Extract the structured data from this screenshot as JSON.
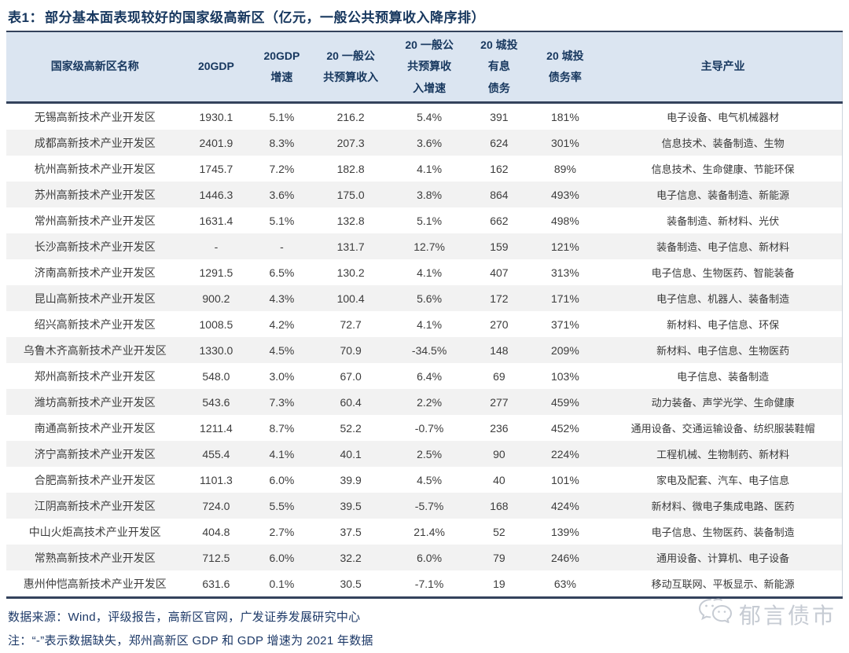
{
  "title": {
    "prefix": "表1：",
    "text": "部分基本面表现较好的国家级高新区（亿元，一般公共预算收入降序排）"
  },
  "colors": {
    "accent_navy": "#17375e",
    "rule": "#33425c",
    "header_bg": "#dbe5f1",
    "row_stripe": "#f2f2f2",
    "body_text": "#3d3d3d",
    "footer_text": "#1e3a68",
    "watermark": "#c6cbd3"
  },
  "table": {
    "columns": [
      {
        "key": "zone-name",
        "label": "国家级高新区名称"
      },
      {
        "key": "gdp-2020",
        "label": "20GDP"
      },
      {
        "key": "gdp-growth-2020",
        "label": "20GDP\n增速"
      },
      {
        "key": "budget-revenue-2020",
        "label": "20 一般公\n共预算收入"
      },
      {
        "key": "budget-revenue-growth-2020",
        "label": "20 一般公\n共预算收\n入增速"
      },
      {
        "key": "lgfv-debt-2020",
        "label": "20 城投\n有息\n债务"
      },
      {
        "key": "lgfv-debt-ratio-2020",
        "label": "20 城投\n债务率"
      },
      {
        "key": "leading-industries",
        "label": "主导产业"
      }
    ],
    "rows": [
      [
        "无锡高新技术产业开发区",
        "1930.1",
        "5.1%",
        "216.2",
        "5.4%",
        "391",
        "181%",
        "电子设备、电气机械器材"
      ],
      [
        "成都高新技术产业开发区",
        "2401.9",
        "8.3%",
        "207.3",
        "3.6%",
        "624",
        "301%",
        "信息技术、装备制造、生物"
      ],
      [
        "杭州高新技术产业开发区",
        "1745.7",
        "7.2%",
        "182.8",
        "4.1%",
        "162",
        "89%",
        "信息技术、生命健康、节能环保"
      ],
      [
        "苏州高新技术产业开发区",
        "1446.3",
        "3.6%",
        "175.0",
        "3.8%",
        "864",
        "493%",
        "电子信息、装备制造、新能源"
      ],
      [
        "常州高新技术产业开发区",
        "1631.4",
        "5.1%",
        "132.8",
        "5.1%",
        "662",
        "498%",
        "装备制造、新材料、光伏"
      ],
      [
        "长沙高新技术产业开发区",
        "-",
        "-",
        "131.7",
        "12.7%",
        "159",
        "121%",
        "装备制造、电子信息、新材料"
      ],
      [
        "济南高新技术产业开发区",
        "1291.5",
        "6.5%",
        "130.2",
        "4.1%",
        "407",
        "313%",
        "电子信息、生物医药、智能装备"
      ],
      [
        "昆山高新技术产业开发区",
        "900.2",
        "4.3%",
        "100.4",
        "5.6%",
        "172",
        "171%",
        "电子信息、机器人、装备制造"
      ],
      [
        "绍兴高新技术产业开发区",
        "1008.5",
        "4.2%",
        "72.7",
        "4.1%",
        "270",
        "371%",
        "新材料、电子信息、环保"
      ],
      [
        "乌鲁木齐高新技术产业开发区",
        "1330.0",
        "4.5%",
        "70.9",
        "-34.5%",
        "148",
        "209%",
        "新材料、电子信息、生物医药"
      ],
      [
        "郑州高新技术产业开发区",
        "548.0",
        "3.0%",
        "67.0",
        "6.4%",
        "69",
        "103%",
        "电子信息、装备制造"
      ],
      [
        "潍坊高新技术产业开发区",
        "543.6",
        "7.3%",
        "60.4",
        "2.2%",
        "277",
        "459%",
        "动力装备、声学光学、生命健康"
      ],
      [
        "南通高新技术产业开发区",
        "1211.4",
        "8.7%",
        "52.2",
        "-0.7%",
        "236",
        "452%",
        "通用设备、交通运输设备、纺织服装鞋帽"
      ],
      [
        "济宁高新技术产业开发区",
        "455.4",
        "4.1%",
        "40.1",
        "2.5%",
        "90",
        "224%",
        "工程机械、生物制药、新材料"
      ],
      [
        "合肥高新技术产业开发区",
        "1101.3",
        "6.0%",
        "39.9",
        "4.5%",
        "40",
        "101%",
        "家电及配套、汽车、电子信息"
      ],
      [
        "江阴高新技术产业开发区",
        "724.0",
        "5.5%",
        "39.5",
        "-5.7%",
        "168",
        "424%",
        "新材料、微电子集成电路、医药"
      ],
      [
        "中山火炬高技术产业开发区",
        "404.8",
        "2.7%",
        "37.5",
        "21.4%",
        "52",
        "139%",
        "电子信息、生物医药、装备制造"
      ],
      [
        "常熟高新技术产业开发区",
        "712.5",
        "6.0%",
        "32.2",
        "6.0%",
        "79",
        "246%",
        "通用设备、计算机、电子设备"
      ],
      [
        "惠州仲恺高新技术产业开发区",
        "631.6",
        "0.1%",
        "30.5",
        "-7.1%",
        "19",
        "63%",
        "移动互联网、平板显示、新能源"
      ]
    ]
  },
  "footer": {
    "source": "数据来源：Wind，评级报告，高新区官网，广发证券发展研究中心",
    "note": "注：“-”表示数据缺失，郑州高新区 GDP 和 GDP 增速为 2021 年数据"
  },
  "watermark": {
    "text": "郁言债市",
    "icon": "wechat-icon"
  }
}
